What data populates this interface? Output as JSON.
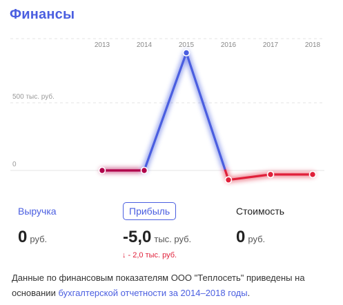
{
  "section": {
    "title": "Финансы"
  },
  "chart_data": {
    "type": "line",
    "x": [
      "2013",
      "2014",
      "2015",
      "2016",
      "2017",
      "2018"
    ],
    "y_ticks": [
      {
        "value": 0,
        "label": "0"
      },
      {
        "value": 500,
        "label": "500 тыс. руб."
      }
    ],
    "series": [
      {
        "values": [
          0,
          0,
          870,
          -70,
          -30,
          -30
        ]
      }
    ],
    "ylim": [
      -100,
      1000
    ],
    "colors": {
      "positive": "#4a5ee0",
      "negative": "#e0203a",
      "zero": "#b0004a"
    }
  },
  "metrics": {
    "revenue": {
      "label": "Выручка",
      "value": "0",
      "unit": "руб."
    },
    "profit": {
      "label": "Прибыль",
      "value": "-5,0",
      "unit": "тыс. руб.",
      "change_arrow": "↓",
      "change": "- 2,0 тыс. руб."
    },
    "cost": {
      "label": "Стоимость",
      "value": "0",
      "unit": "руб."
    }
  },
  "footnote": {
    "text": "Данные по финансовым показателям ООО \"Теплосеть\" приведены на основании ",
    "link": "бухгалтерской отчетности за 2014–2018 годы",
    "end": "."
  }
}
